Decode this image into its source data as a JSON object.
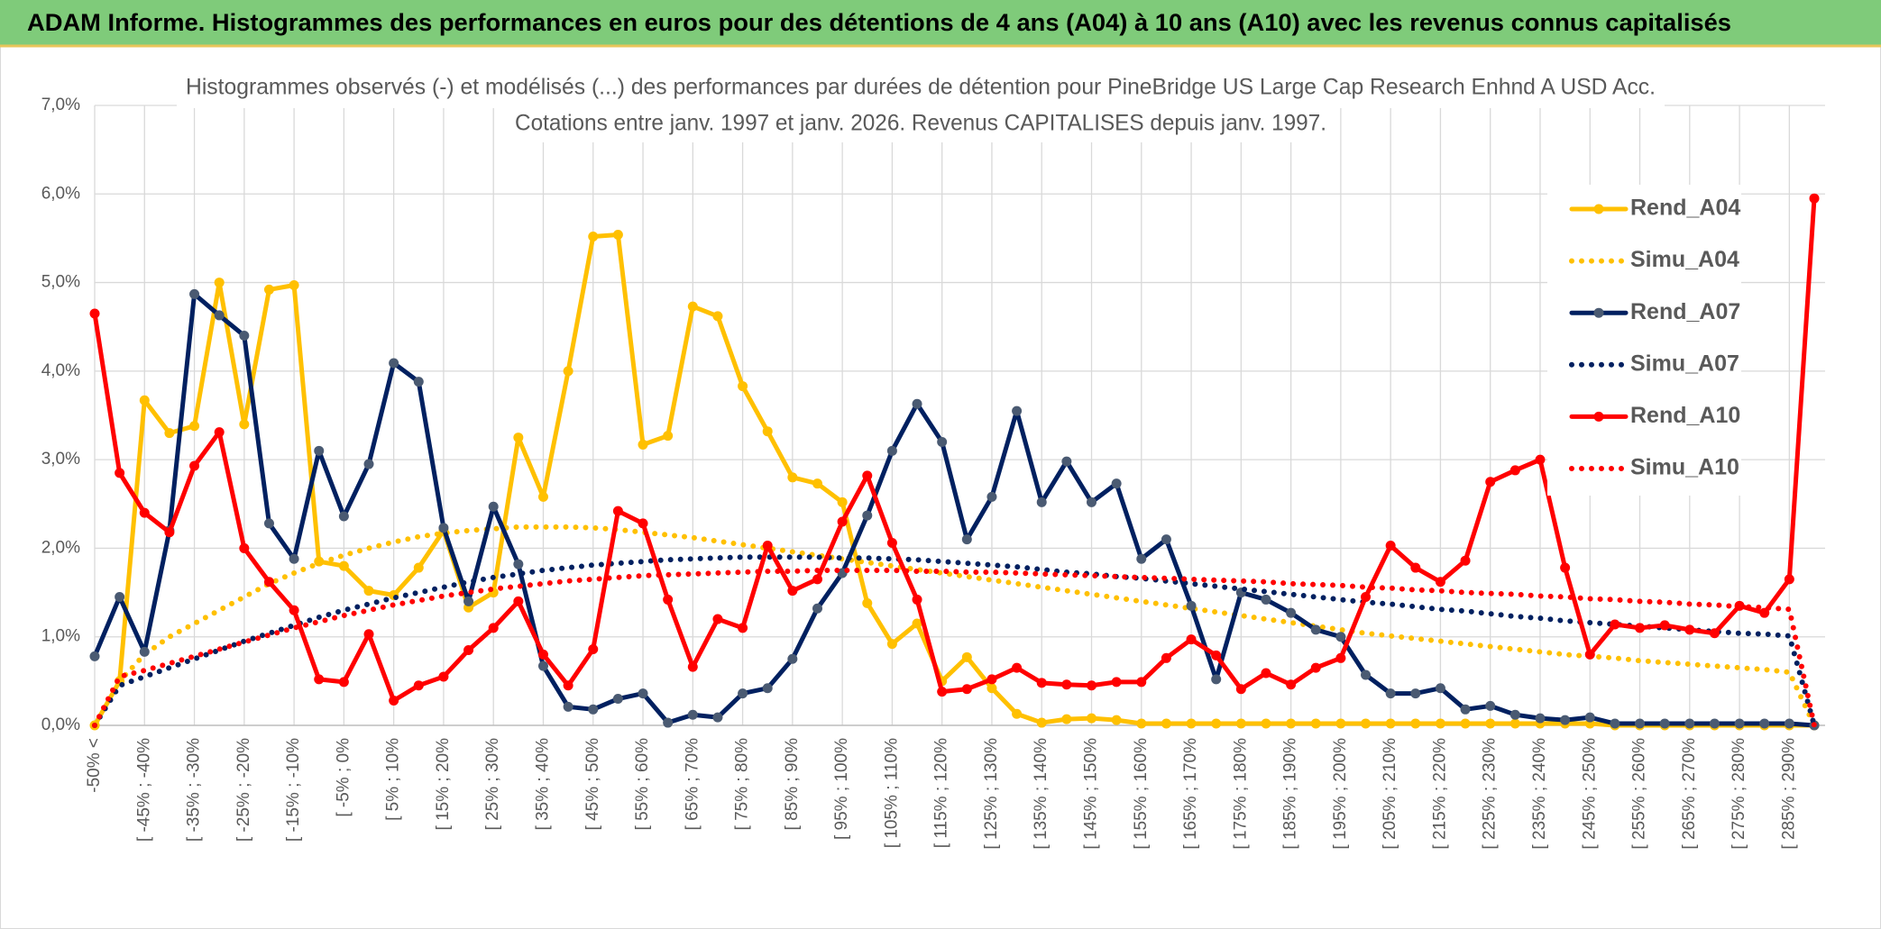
{
  "banner": {
    "title": "ADAM Informe. Histogrammes des performances en euros pour des détentions de 4 ans (A04) à 10 ans (A10) avec les revenus connus capitalisés"
  },
  "chart_data": {
    "type": "line",
    "title": "Histogrammes observés (-) et modélisés (...) des performances par durées de détention pour PineBridge US Large Cap Research Enhnd A USD Acc.",
    "subtitle": "Cotations entre janv. 1997 et janv. 2026. Revenus CAPITALISES depuis janv. 1997.",
    "categories": [
      "-50% <",
      null,
      "[ -45% ; -40%",
      null,
      "[ -35% ; -30%",
      null,
      "[ -25% ; -20%",
      null,
      "[ -15% ; -10%",
      null,
      "[ -5% ; 0%",
      null,
      "[ 5% ; 10%",
      null,
      "[ 15% ; 20%",
      null,
      "[ 25% ; 30%",
      null,
      "[ 35% ; 40%",
      null,
      "[ 45% ; 50%",
      null,
      "[ 55% ; 60%",
      null,
      "[ 65% ; 70%",
      null,
      "[ 75% ; 80%",
      null,
      "[ 85% ; 90%",
      null,
      "[ 95% ; 100%",
      null,
      "[ 105% ; 110%",
      null,
      "[ 115% ; 120%",
      null,
      "[ 125% ; 130%",
      null,
      "[ 135% ; 140%",
      null,
      "[ 145% ; 150%",
      null,
      "[ 155% ; 160%",
      null,
      "[ 165% ; 170%",
      null,
      "[ 175% ; 180%",
      null,
      "[ 185% ; 190%",
      null,
      "[ 195% ; 200%",
      null,
      "[ 205% ; 210%",
      null,
      "[ 215% ; 220%",
      null,
      "[ 225% ; 230%",
      null,
      "[ 235% ; 240%",
      null,
      "[ 245% ; 250%",
      null,
      "[ 255% ; 260%",
      null,
      "[ 265% ; 270%",
      null,
      "[ 275% ; 280%",
      null,
      "[ 285% ; 290%",
      null
    ],
    "series": [
      {
        "name": "Rend_A04",
        "color": "#ffc000",
        "style": "solid",
        "values": [
          0,
          0.5,
          3.67,
          3.3,
          3.38,
          5.0,
          3.4,
          4.92,
          4.97,
          1.85,
          1.8,
          1.52,
          1.47,
          1.78,
          2.2,
          1.33,
          1.5,
          3.25,
          2.58,
          4.0,
          5.52,
          5.54,
          3.17,
          3.27,
          4.73,
          4.62,
          3.83,
          3.32,
          2.8,
          2.73,
          2.52,
          1.38,
          0.92,
          1.15,
          0.5,
          0.77,
          0.42,
          0.13,
          0.03,
          0.07,
          0.08,
          0.06,
          0.02,
          0.02,
          0.02,
          0.02,
          0.02,
          0.02,
          0.02,
          0.02,
          0.02,
          0.02,
          0.02,
          0.02,
          0.02,
          0.02,
          0.02,
          0.02,
          0.02,
          0.02,
          0.02,
          0,
          0,
          0,
          0,
          0,
          0,
          0,
          0,
          0
        ]
      },
      {
        "name": "Simu_A04",
        "color": "#ffc000",
        "style": "dotted",
        "values": [
          0,
          0.5,
          0.8,
          1.0,
          1.15,
          1.3,
          1.45,
          1.6,
          1.72,
          1.83,
          1.92,
          2.0,
          2.07,
          2.13,
          2.17,
          2.2,
          2.22,
          2.24,
          2.24,
          2.24,
          2.23,
          2.21,
          2.18,
          2.15,
          2.12,
          2.08,
          2.04,
          2.0,
          1.96,
          1.92,
          1.88,
          1.84,
          1.8,
          1.76,
          1.72,
          1.68,
          1.64,
          1.6,
          1.56,
          1.52,
          1.48,
          1.44,
          1.4,
          1.36,
          1.32,
          1.28,
          1.24,
          1.2,
          1.16,
          1.12,
          1.08,
          1.04,
          1.01,
          0.98,
          0.95,
          0.92,
          0.89,
          0.86,
          0.83,
          0.8,
          0.78,
          0.76,
          0.73,
          0.71,
          0.69,
          0.67,
          0.65,
          0.63,
          0.6,
          0
        ]
      },
      {
        "name": "Rend_A07",
        "color": "#002060",
        "marker_color": "#4a5a72",
        "style": "solid",
        "values": [
          0.78,
          1.45,
          0.83,
          2.2,
          4.87,
          4.63,
          4.4,
          2.28,
          1.88,
          3.1,
          2.36,
          2.95,
          4.09,
          3.88,
          2.23,
          1.4,
          2.47,
          1.82,
          0.67,
          0.21,
          0.18,
          0.3,
          0.36,
          0.03,
          0.12,
          0.09,
          0.36,
          0.42,
          0.75,
          1.32,
          1.72,
          2.37,
          3.1,
          3.63,
          3.2,
          2.1,
          2.58,
          3.55,
          2.52,
          2.98,
          2.52,
          2.73,
          1.88,
          2.1,
          1.35,
          0.52,
          1.5,
          1.42,
          1.27,
          1.08,
          1.0,
          0.57,
          0.36,
          0.36,
          0.42,
          0.18,
          0.22,
          0.12,
          0.08,
          0.06,
          0.09,
          0.02,
          0.02,
          0.02,
          0.02,
          0.02,
          0.02,
          0.02,
          0.02,
          0
        ]
      },
      {
        "name": "Simu_A07",
        "color": "#002060",
        "style": "dotted",
        "values": [
          0,
          0.45,
          0.55,
          0.65,
          0.75,
          0.85,
          0.95,
          1.04,
          1.13,
          1.22,
          1.3,
          1.37,
          1.44,
          1.5,
          1.56,
          1.62,
          1.67,
          1.71,
          1.75,
          1.78,
          1.81,
          1.83,
          1.85,
          1.87,
          1.88,
          1.89,
          1.9,
          1.9,
          1.9,
          1.9,
          1.89,
          1.89,
          1.88,
          1.87,
          1.85,
          1.83,
          1.81,
          1.79,
          1.76,
          1.73,
          1.71,
          1.68,
          1.66,
          1.63,
          1.6,
          1.57,
          1.54,
          1.51,
          1.48,
          1.45,
          1.42,
          1.39,
          1.37,
          1.34,
          1.31,
          1.29,
          1.26,
          1.23,
          1.21,
          1.18,
          1.16,
          1.14,
          1.12,
          1.1,
          1.08,
          1.06,
          1.04,
          1.03,
          1.01,
          0
        ]
      },
      {
        "name": "Rend_A10",
        "color": "#ff0000",
        "style": "solid",
        "values": [
          4.65,
          2.85,
          2.4,
          2.18,
          2.93,
          3.31,
          2.0,
          1.62,
          1.3,
          0.52,
          0.49,
          1.03,
          0.28,
          0.45,
          0.55,
          0.85,
          1.1,
          1.4,
          0.8,
          0.45,
          0.86,
          2.42,
          2.28,
          1.42,
          0.66,
          1.2,
          1.1,
          2.03,
          1.52,
          1.65,
          2.3,
          2.82,
          2.06,
          1.42,
          0.38,
          0.41,
          0.52,
          0.65,
          0.48,
          0.46,
          0.45,
          0.49,
          0.49,
          0.76,
          0.97,
          0.79,
          0.41,
          0.59,
          0.46,
          0.65,
          0.76,
          1.45,
          2.03,
          1.78,
          1.62,
          1.86,
          2.75,
          2.88,
          3.0,
          1.78,
          0.8,
          1.14,
          1.1,
          1.13,
          1.08,
          1.04,
          1.35,
          1.27,
          1.65,
          5.95
        ]
      },
      {
        "name": "Simu_A10",
        "color": "#ff0000",
        "style": "dotted",
        "values": [
          0,
          0.55,
          0.62,
          0.7,
          0.78,
          0.86,
          0.94,
          1.02,
          1.1,
          1.17,
          1.24,
          1.3,
          1.36,
          1.41,
          1.46,
          1.5,
          1.54,
          1.57,
          1.6,
          1.63,
          1.65,
          1.67,
          1.69,
          1.7,
          1.71,
          1.72,
          1.73,
          1.74,
          1.74,
          1.75,
          1.75,
          1.75,
          1.75,
          1.74,
          1.74,
          1.73,
          1.73,
          1.72,
          1.71,
          1.7,
          1.69,
          1.68,
          1.67,
          1.66,
          1.65,
          1.64,
          1.63,
          1.62,
          1.6,
          1.59,
          1.58,
          1.56,
          1.55,
          1.53,
          1.52,
          1.5,
          1.49,
          1.48,
          1.46,
          1.45,
          1.43,
          1.42,
          1.4,
          1.39,
          1.37,
          1.36,
          1.34,
          1.33,
          1.31,
          0
        ]
      }
    ],
    "ylim": [
      0,
      7
    ],
    "yticks": [
      {
        "value": 0,
        "label": "0,0%"
      },
      {
        "value": 1,
        "label": "1,0%"
      },
      {
        "value": 2,
        "label": "2,0%"
      },
      {
        "value": 3,
        "label": "3,0%"
      },
      {
        "value": 4,
        "label": "4,0%"
      },
      {
        "value": 5,
        "label": "5,0%"
      },
      {
        "value": 6,
        "label": "6,0%"
      },
      {
        "value": 7,
        "label": "7,0%"
      }
    ],
    "grid": true,
    "legend": "upper right"
  }
}
